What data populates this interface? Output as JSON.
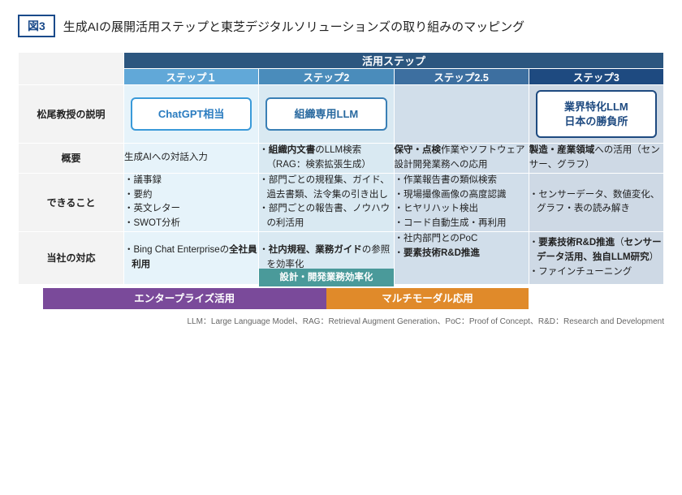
{
  "figure_badge": "図3",
  "figure_title": "生成AIの展開活用ステップと東芝デジタルソリューションズの取り組みのマッピング",
  "colors": {
    "header_top": "#2c567f",
    "step1": "#61a8d8",
    "step2": "#4a8cbb",
    "step2_5": "#3d6fa0",
    "step3": "#1e4a80",
    "bg1": "#e6f3fa",
    "bg2": "#d9e9f2",
    "bg2_5": "#d1deea",
    "bg3": "#ced9e5",
    "label_bg": "#f3f3f3",
    "callout1_border": "#3a9ad9",
    "callout1_text": "#2a7cc0",
    "callout2_border": "#3a7fb5",
    "callout2_text": "#2a6aa0",
    "callout3_border": "#1e4a80",
    "callout3_text": "#1e4a80",
    "bar_green": "#4a9a9a",
    "bar_purple": "#7a4a9a",
    "bar_orange": "#e08a2a"
  },
  "top_header": "活用ステップ",
  "steps": {
    "s1": "ステップ１",
    "s2": "ステップ2",
    "s2_5": "ステップ2.5",
    "s3": "ステップ3"
  },
  "row_labels": {
    "r1": "松尾教授の説明",
    "r2": "概要",
    "r3": "できること",
    "r4": "当社の対応"
  },
  "callouts": {
    "c1": "ChatGPT相当",
    "c2": "組織専用LLM",
    "c3": "業界特化LLM\n日本の勝負所"
  },
  "cells": {
    "r2s1": "生成AIへの対話入力",
    "r2s2_b": [
      "<b>組織内文書</b>のLLM検索（RAG：検索拡張生成）"
    ],
    "r2s2_5": "<b>保守・点検</b>作業やソフトウェア設計開発業務への応用",
    "r2s3": "<b>製造・産業領域</b>への活用（センサー、グラフ）",
    "r3s1_b": [
      "議事録",
      "要約",
      "英文レター",
      "SWOT分析"
    ],
    "r3s2_b": [
      "部門ごとの規程集、ガイド、過去書類、法令集の引き出し",
      "部門ごとの報告書、ノウハウの利活用"
    ],
    "r3s2_5_b": [
      "作業報告書の類似検索",
      "現場撮像画像の高度認識",
      "ヒヤリハット検出",
      "コード自動生成・再利用"
    ],
    "r3s3_b": [
      "センサーデータ、数値変化、グラフ・表の読み解き"
    ],
    "r4s1_b": [
      "Bing Chat Enterpriseの<b>全社員利用</b>"
    ],
    "r4s2_b": [
      "<b>社内規程、業務ガイド</b>の参照を効率化"
    ],
    "r4s2_5_b": [
      "社内部門とのPoC",
      "<b>要素技術R&D推進</b>"
    ],
    "r4s3_b": [
      "<b>要素技術R&D推進</b>（<b>センサーデータ活用、独自LLM研究</b>）",
      "ファインチューニング"
    ]
  },
  "bars": {
    "small": "設計・開発業務効率化",
    "purple": "エンタープライズ活用",
    "orange": "マルチモーダル応用"
  },
  "footnote": "LLM：Large Language Model、RAG：Retrieval Augment Generation、PoC：Proof of Concept、R&D：Research and Development"
}
